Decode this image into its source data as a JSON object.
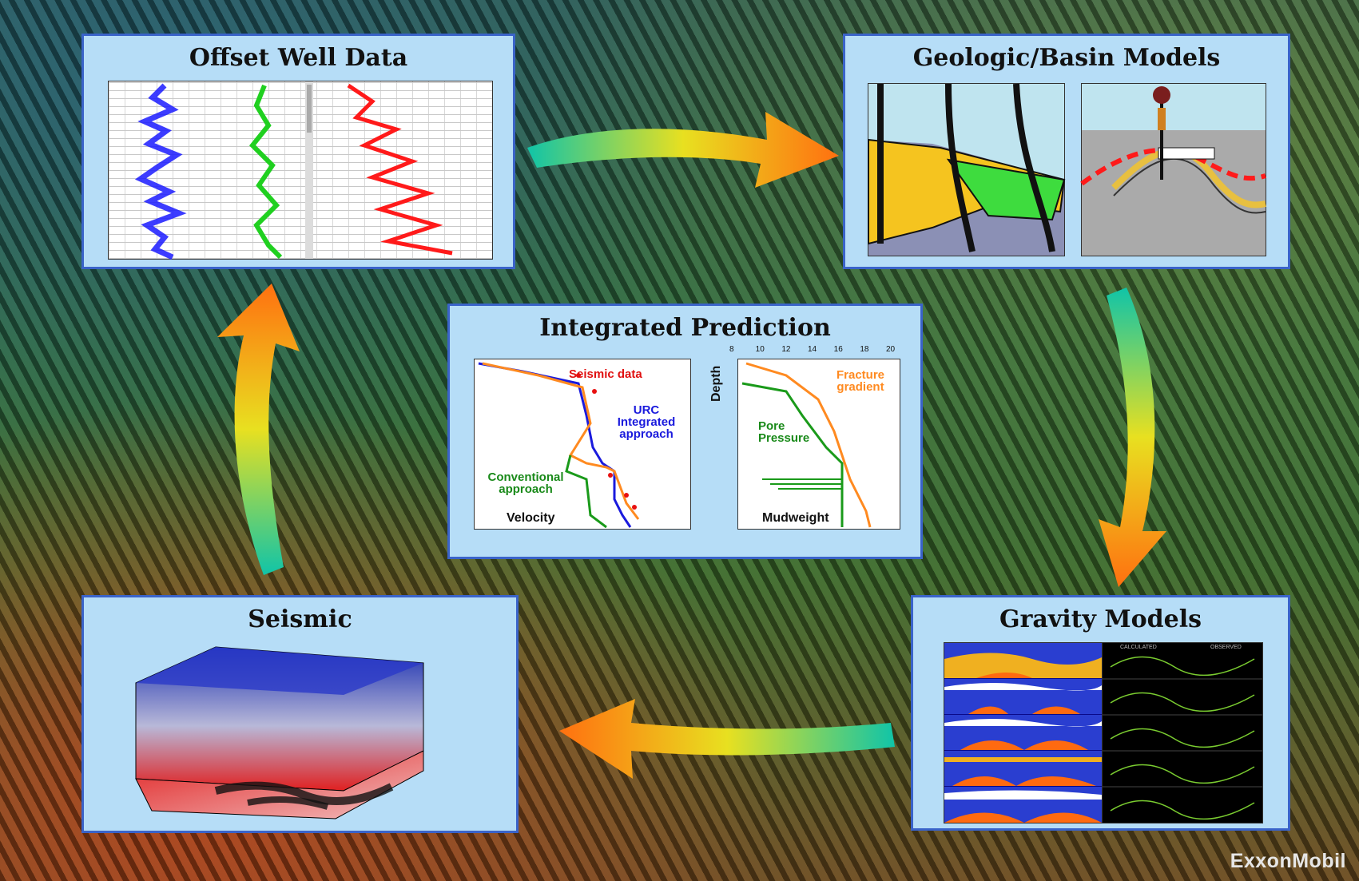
{
  "panels": {
    "offset_well": {
      "title": "Offset Well Data"
    },
    "geologic": {
      "title": "Geologic/Basin Models"
    },
    "integrated": {
      "title": "Integrated Prediction",
      "seismic_data": "Seismic data",
      "urc_integrated": "URC Integrated approach",
      "conventional": "Conventional approach",
      "velocity": "Velocity",
      "depth": "Depth",
      "fracture_gradient": "Fracture gradient",
      "pore_pressure": "Pore Pressure",
      "mudweight": "Mudweight",
      "mudweight_ticks": [
        "8",
        "10",
        "12",
        "14",
        "16",
        "18",
        "20"
      ]
    },
    "gravity": {
      "title": "Gravity Models",
      "calculated": "CALCULATED",
      "observed": "OBSERVED"
    },
    "seismic": {
      "title": "Seismic"
    }
  },
  "logo": "ExxonMobil",
  "colors": {
    "panel_bg": "#b6ddf7",
    "panel_border": "#3a63c9"
  }
}
